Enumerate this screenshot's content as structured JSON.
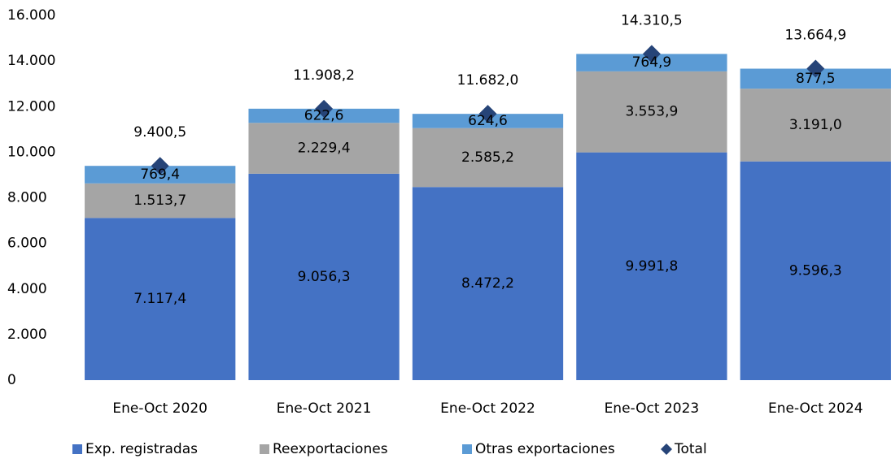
{
  "chart_data": {
    "type": "stacked_bar",
    "categories": [
      "Ene-Oct 2020",
      "Ene-Oct 2021",
      "Ene-Oct 2022",
      "Ene-Oct 2023",
      "Ene-Oct 2024"
    ],
    "series": [
      {
        "name": "Exp. registradas",
        "color": "#4472c4",
        "values": [
          7117.4,
          9056.3,
          8472.2,
          9991.8,
          9596.3
        ],
        "value_labels": [
          "7.117,4",
          "9.056,3",
          "8.472,2",
          "9.991,8",
          "9.596,3"
        ]
      },
      {
        "name": "Reexportaciones",
        "color": "#a5a5a5",
        "values": [
          1513.7,
          2229.4,
          2585.2,
          3553.9,
          3191.0
        ],
        "value_labels": [
          "1.513,7",
          "2.229,4",
          "2.585,2",
          "3.553,9",
          "3.191,0"
        ]
      },
      {
        "name": "Otras exportaciones",
        "color": "#5b9bd5",
        "values": [
          769.4,
          622.6,
          624.6,
          764.9,
          877.5
        ],
        "value_labels": [
          "769,4",
          "622,6",
          "624,6",
          "764,9",
          "877,5"
        ]
      },
      {
        "name": "Total",
        "color": "#264478",
        "type": "scatter",
        "marker": "diamond",
        "values": [
          9400.5,
          11908.2,
          11682.0,
          14310.5,
          13664.9
        ],
        "value_labels": [
          "9.400,5",
          "11.908,2",
          "11.682,0",
          "14.310,5",
          "13.664,9"
        ]
      }
    ],
    "ylim": [
      0,
      16000
    ],
    "yticks": [
      0,
      {
        "value": 2000,
        "label": "2.000"
      },
      {
        "value": 4000,
        "label": "4.000"
      },
      {
        "value": 6000,
        "label": "6.000"
      },
      {
        "value": 8000,
        "label": "8.000"
      },
      {
        "value": 10000,
        "label": "10.000"
      },
      {
        "value": 12000,
        "label": "12.000"
      },
      {
        "value": 14000,
        "label": "14.000"
      },
      {
        "value": 16000,
        "label": "16.000"
      }
    ],
    "grid": false,
    "legend": "bottom"
  }
}
